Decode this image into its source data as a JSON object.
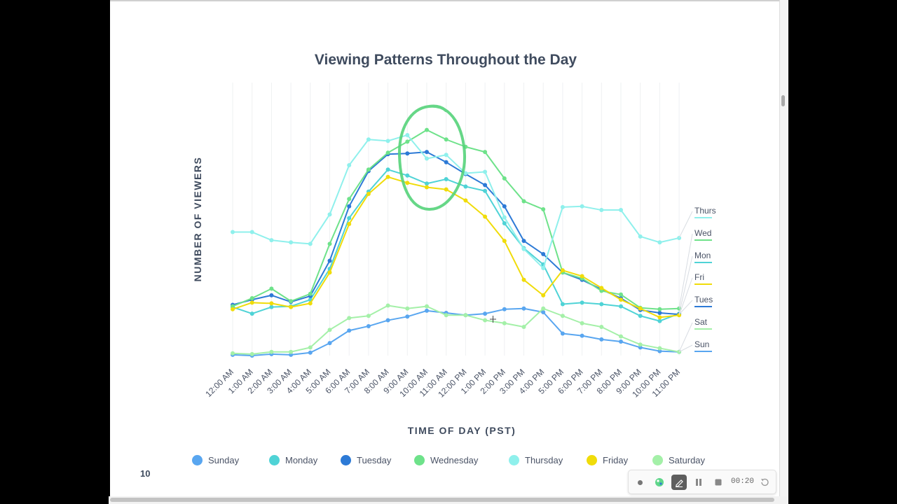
{
  "slide": {
    "page_number": "10"
  },
  "chart_data": {
    "type": "line",
    "title": "Viewing Patterns Throughout the Day",
    "xlabel": "TIME OF DAY (PST)",
    "ylabel": "NUMBER OF VIEWERS",
    "categories": [
      "12:00 AM",
      "1:00 AM",
      "2:00 AM",
      "3:00 AM",
      "4:00 AM",
      "5:00 AM",
      "6:00 AM",
      "7:00 AM",
      "8:00 AM",
      "9:00 AM",
      "10:00 AM",
      "11:00 AM",
      "12:00 PM",
      "1:00 PM",
      "2:00 PM",
      "3:00 PM",
      "4:00 PM",
      "5:00 PM",
      "6:00 PM",
      "7:00 PM",
      "8:00 PM",
      "9:00 PM",
      "10:00 PM",
      "11:00 PM"
    ],
    "ylim": [
      0,
      400
    ],
    "grid": "vertical",
    "legend_position": "bottom",
    "series": [
      {
        "name": "Sunday",
        "end_label": "Sun",
        "color": "#59a6f0",
        "values": [
          22,
          21,
          23,
          22,
          25,
          38,
          55,
          61,
          69,
          74,
          82,
          79,
          76,
          78,
          84,
          85,
          80,
          51,
          48,
          43,
          40,
          32,
          27,
          26
        ]
      },
      {
        "name": "Monday",
        "end_label": "Mon",
        "color": "#4fd3d6",
        "values": [
          87,
          78,
          87,
          88,
          97,
          139,
          208,
          244,
          274,
          266,
          255,
          261,
          251,
          245,
          201,
          167,
          145,
          91,
          93,
          91,
          88,
          75,
          68,
          78
        ]
      },
      {
        "name": "Tuesday",
        "end_label": "Tues",
        "color": "#2d7ad6",
        "values": [
          90,
          97,
          103,
          94,
          102,
          150,
          224,
          272,
          295,
          296,
          298,
          284,
          268,
          253,
          224,
          177,
          159,
          134,
          124,
          111,
          99,
          83,
          79,
          77
        ]
      },
      {
        "name": "Wednesday",
        "end_label": "Wed",
        "color": "#6ee28a",
        "values": [
          88,
          99,
          112,
          95,
          105,
          173,
          234,
          274,
          297,
          312,
          328,
          315,
          305,
          298,
          262,
          231,
          220,
          134,
          126,
          109,
          104,
          86,
          84,
          85
        ]
      },
      {
        "name": "Thursday",
        "end_label": "Thurs",
        "color": "#8ff0ec",
        "values": [
          189,
          189,
          178,
          175,
          173,
          213,
          280,
          315,
          313,
          321,
          289,
          294,
          269,
          271,
          209,
          166,
          140,
          223,
          224,
          219,
          219,
          183,
          175,
          181
        ]
      },
      {
        "name": "Friday",
        "end_label": "Fri",
        "color": "#f0dc0a",
        "values": [
          84,
          93,
          92,
          87,
          92,
          134,
          200,
          241,
          264,
          256,
          250,
          247,
          232,
          210,
          177,
          124,
          103,
          137,
          129,
          113,
          97,
          85,
          73,
          76
        ]
      },
      {
        "name": "Saturday",
        "end_label": "Sat",
        "color": "#a4f0a8",
        "values": [
          24,
          23,
          26,
          26,
          32,
          56,
          72,
          75,
          89,
          85,
          88,
          76,
          76,
          69,
          65,
          60,
          85,
          75,
          65,
          60,
          47,
          36,
          31,
          26
        ]
      }
    ]
  },
  "toolbar": {
    "timer": "00:20"
  }
}
